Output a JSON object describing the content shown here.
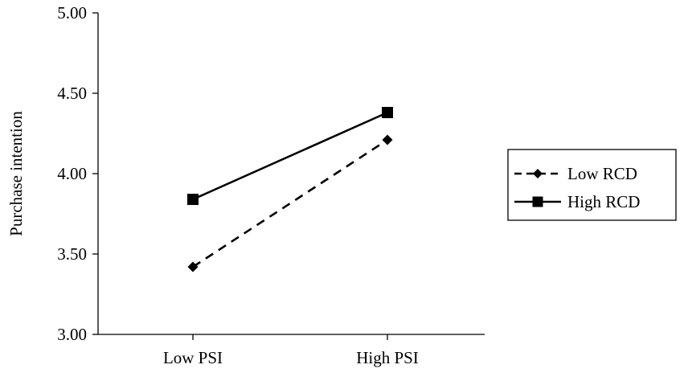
{
  "chart_data": {
    "type": "line",
    "title": "",
    "xlabel": "",
    "ylabel": "Purchase intention",
    "categories": [
      "Low PSI",
      "High PSI"
    ],
    "ylim": [
      3.0,
      5.0
    ],
    "yticks": [
      "3.00",
      "3.50",
      "4.00",
      "4.50",
      "5.00"
    ],
    "ytick_values": [
      3.0,
      3.5,
      4.0,
      4.5,
      5.0
    ],
    "grid": false,
    "legend_position": "right",
    "series": [
      {
        "name": "Low RCD",
        "values": [
          3.42,
          4.21
        ],
        "line_style": "dashed",
        "marker": "diamond",
        "color": "#000000"
      },
      {
        "name": "High RCD",
        "values": [
          3.84,
          4.38
        ],
        "line_style": "solid",
        "marker": "square",
        "color": "#000000"
      }
    ]
  }
}
